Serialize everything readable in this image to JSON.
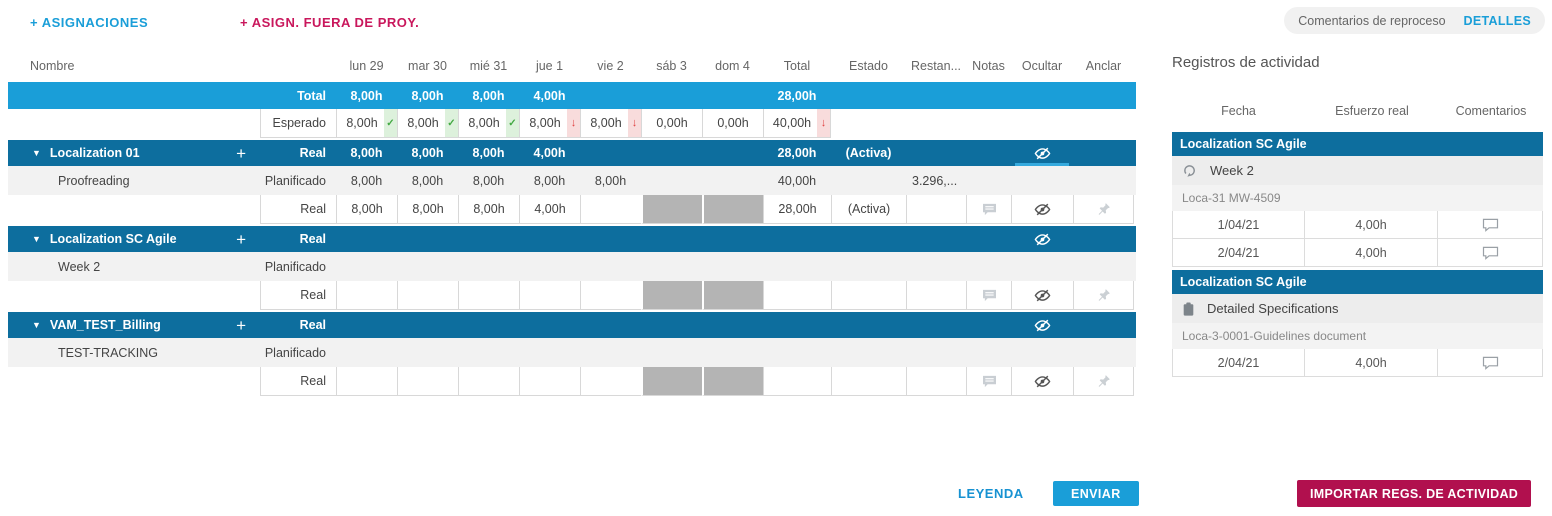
{
  "colors": {
    "accent_blue": "#1a9ed8",
    "dark_blue": "#0d6e9e",
    "crimson": "#b1104e",
    "blocked_gray": "#b4b4b4",
    "green_ok": "#44a944",
    "red_alert": "#e04040"
  },
  "toolbar": {
    "add_assignments": "+ ASIGNACIONES",
    "add_outside_project": "+ ASIGN. FUERA DE PROY."
  },
  "top_tabs": {
    "rework_comments": "Comentarios de reproceso",
    "details": "DETALLES"
  },
  "grid": {
    "columns": {
      "name": "Nombre",
      "days": [
        "lun 29",
        "mar 30",
        "mié 31",
        "jue 1",
        "vie 2",
        "sáb 3",
        "dom 4"
      ],
      "total": "Total",
      "estado": "Estado",
      "restan": "Restan...",
      "notas": "Notas",
      "ocultar": "Ocultar",
      "anclar": "Anclar"
    },
    "rows": [
      {
        "type": "total",
        "label": "Total",
        "days": [
          {
            "v": "8,00h"
          },
          {
            "v": "8,00h"
          },
          {
            "v": "8,00h"
          },
          {
            "v": "4,00h"
          },
          {},
          {},
          {}
        ],
        "total": {
          "v": "28,00h"
        },
        "estado": "",
        "restan": ""
      },
      {
        "type": "expected",
        "label": "Esperado",
        "days": [
          {
            "v": "8,00h",
            "ind": "check"
          },
          {
            "v": "8,00h",
            "ind": "check"
          },
          {
            "v": "8,00h",
            "ind": "check"
          },
          {
            "v": "8,00h",
            "ind": "down"
          },
          {
            "v": "8,00h",
            "ind": "down"
          },
          {
            "v": "0,00h"
          },
          {
            "v": "0,00h"
          }
        ],
        "total": {
          "v": "40,00h",
          "ind": "down"
        },
        "estado": "",
        "restan": ""
      },
      {
        "type": "group",
        "name": "Localization 01",
        "label": "Real",
        "days": [
          {
            "v": "8,00h"
          },
          {
            "v": "8,00h"
          },
          {
            "v": "8,00h"
          },
          {
            "v": "4,00h"
          },
          {},
          {},
          {}
        ],
        "total": {
          "v": "28,00h"
        },
        "estado": "(Activa)",
        "restan": "",
        "eye_underline": true
      },
      {
        "type": "planned",
        "name": "Proofreading",
        "label": "Planificado",
        "days": [
          {
            "v": "8,00h"
          },
          {
            "v": "8,00h"
          },
          {
            "v": "8,00h"
          },
          {
            "v": "8,00h"
          },
          {
            "v": "8,00h"
          },
          {},
          {}
        ],
        "total": {
          "v": "40,00h"
        },
        "estado": "",
        "restan": "3.296,..."
      },
      {
        "type": "real",
        "label": "Real",
        "days": [
          {
            "v": "8,00h"
          },
          {
            "v": "8,00h"
          },
          {
            "v": "8,00h"
          },
          {
            "v": "4,00h"
          },
          {},
          {
            "blocked": true
          },
          {
            "blocked": true
          }
        ],
        "total": {
          "v": "28,00h"
        },
        "estado": "(Activa)",
        "restan": ""
      },
      {
        "type": "group",
        "name": "Localization SC Agile",
        "label": "Real",
        "days": [
          {},
          {},
          {},
          {},
          {},
          {},
          {}
        ],
        "total": {},
        "estado": "",
        "restan": ""
      },
      {
        "type": "planned",
        "name": "Week 2",
        "label": "Planificado",
        "days": [
          {},
          {},
          {},
          {},
          {},
          {},
          {}
        ],
        "total": {},
        "estado": "",
        "restan": ""
      },
      {
        "type": "real",
        "label": "Real",
        "days": [
          {},
          {},
          {},
          {},
          {},
          {
            "blocked": true
          },
          {
            "blocked": true
          }
        ],
        "total": {},
        "estado": "",
        "restan": ""
      },
      {
        "type": "group",
        "name": "VAM_TEST_Billing",
        "label": "Real",
        "days": [
          {},
          {},
          {},
          {},
          {},
          {},
          {}
        ],
        "total": {},
        "estado": "",
        "restan": ""
      },
      {
        "type": "planned",
        "name": "TEST-TRACKING",
        "label": "Planificado",
        "days": [
          {},
          {},
          {},
          {},
          {},
          {},
          {}
        ],
        "total": {},
        "estado": "",
        "restan": ""
      },
      {
        "type": "real",
        "label": "Real",
        "days": [
          {},
          {},
          {},
          {},
          {},
          {
            "blocked": true
          },
          {
            "blocked": true
          }
        ],
        "total": {},
        "estado": "",
        "restan": ""
      }
    ]
  },
  "activity": {
    "title": "Registros de actividad",
    "columns": [
      "Fecha",
      "Esfuerzo real",
      "Comentarios"
    ],
    "groups": [
      {
        "project": "Localization SC Agile",
        "icon": "sprint-icon",
        "task": "Week 2",
        "code": "Loca-31 MW-4509",
        "entries": [
          {
            "date": "1/04/21",
            "effort": "4,00h"
          },
          {
            "date": "2/04/21",
            "effort": "4,00h"
          }
        ]
      },
      {
        "project": "Localization SC Agile",
        "icon": "document-icon",
        "task": "Detailed Specifications",
        "code": "Loca-3-0001-Guidelines document",
        "entries": [
          {
            "date": "2/04/21",
            "effort": "4,00h"
          }
        ]
      }
    ]
  },
  "footer": {
    "legend": "LEYENDA",
    "submit": "ENVIAR",
    "import_logs": "IMPORTAR REGS. DE ACTIVIDAD"
  }
}
